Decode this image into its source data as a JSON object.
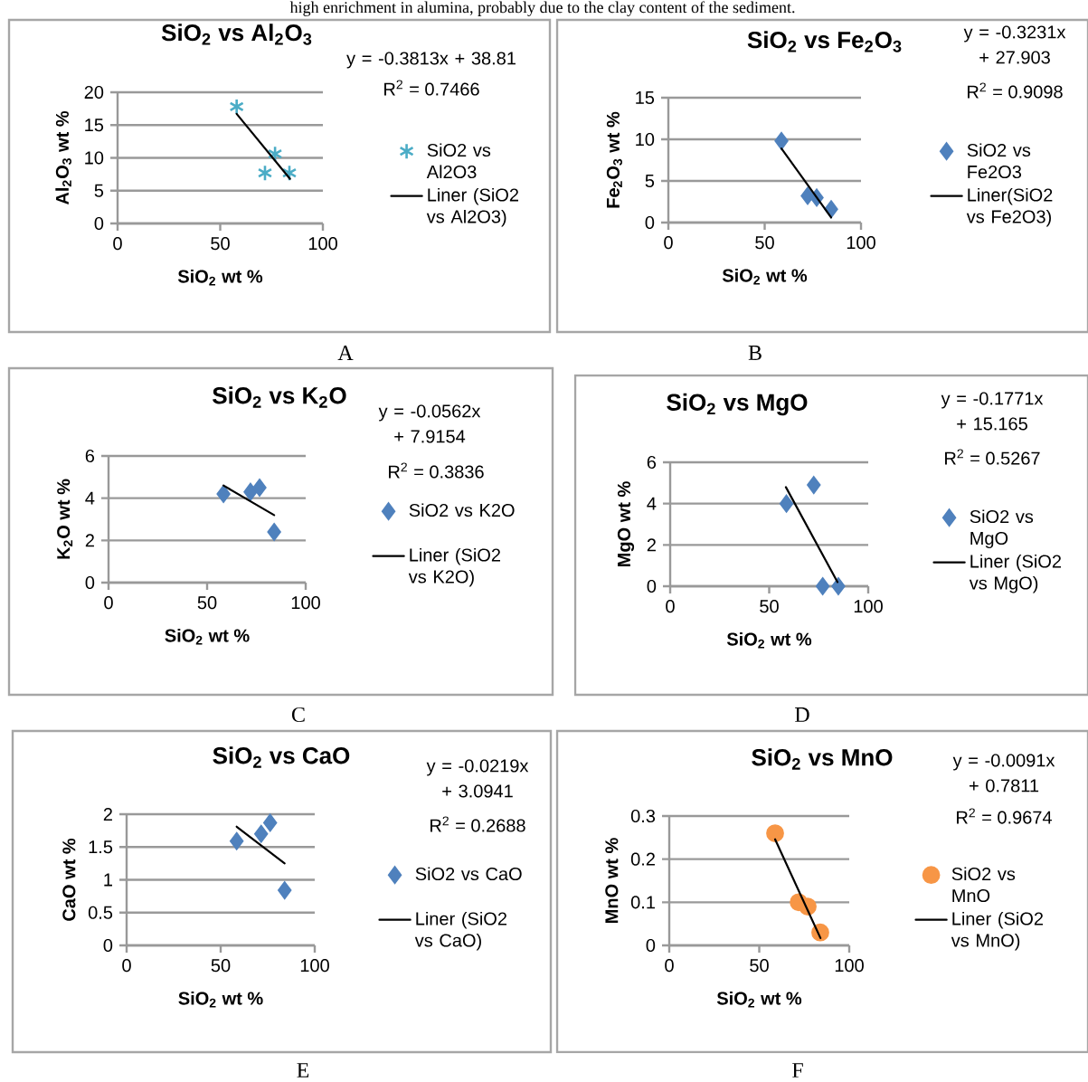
{
  "chart_data": [
    {
      "type": "scatter",
      "title": "SiO$_{2}$ vs Al$_{2}$O$_{3}$",
      "xlabel": "SiO$_{2}$ wt %",
      "ylabel": "Al$_{2}$O$_{3}$ wt %",
      "xlim": [
        0,
        100
      ],
      "xticks": [
        0,
        50,
        100
      ],
      "ylim": [
        0,
        20
      ],
      "yticks": [
        0,
        5,
        10,
        15,
        20
      ],
      "grid": "y",
      "legend": "right",
      "annotations": [
        "y = -0.3813x + 38.81",
        "R$^{2}$ = 0.7466",
        "A",
        "high enrichment in alumina, probably due to the clay content of the sediment."
      ],
      "series": [
        {
          "name": "SiO2 vs Al2O3",
          "color": "#4bacc6",
          "marker": "cross",
          "x": [
            58,
            71.8,
            76.7,
            83.7
          ],
          "values": [
            17.8,
            7.7,
            10.6,
            7.7
          ]
        },
        {
          "type": "line",
          "name": "Liner (SiO2 vs Al2O3)",
          "color": "#000000",
          "marker": "none",
          "x": [
            58,
            84
          ],
          "values": [
            16.7,
            6.8
          ]
        }
      ]
    },
    {
      "type": "scatter",
      "title": "SiO$_{2}$ vs Fe$_{2}$O$_{3}$",
      "xlabel": "SiO$_{2}$ wt %",
      "ylabel": "Fe$_{2}$O$_{3}$ wt %",
      "xlim": [
        0,
        100
      ],
      "xticks": [
        0,
        50,
        100
      ],
      "ylim": [
        0,
        15
      ],
      "yticks": [
        0,
        5,
        10,
        15
      ],
      "grid": "y",
      "legend": "right",
      "annotations": [
        "y = -0.3231x + 27.903",
        "R$^{2}$ = 0.9098",
        "B"
      ],
      "series": [
        {
          "name": "SiO2 vs Fe2O3",
          "color": "#4f81bd",
          "marker": "diamond",
          "x": [
            58.7,
            72.3,
            77,
            84.5
          ],
          "values": [
            9.8,
            3.2,
            3.0,
            1.6
          ]
        },
        {
          "type": "line",
          "name": "Liner(SiO2 vs Fe2O3)",
          "color": "#000000",
          "marker": "none",
          "x": [
            58.7,
            84.5
          ],
          "values": [
            8.9,
            0.6
          ]
        }
      ]
    },
    {
      "type": "scatter",
      "title": "SiO$_{2}$ vs K$_{2}$O",
      "xlabel": "SiO$_{2}$ wt %",
      "ylabel": "K$_{2}$O wt %",
      "xlim": [
        0,
        100
      ],
      "xticks": [
        0,
        50,
        100
      ],
      "ylim": [
        0,
        6
      ],
      "yticks": [
        0,
        2,
        4,
        6
      ],
      "grid": "y",
      "legend": "right",
      "annotations": [
        "y = -0.0562x + 7.9154",
        "R$^{2}$ = 0.3836",
        "C"
      ],
      "series": [
        {
          "name": "SiO2 vs K2O",
          "color": "#4f81bd",
          "marker": "diamond",
          "x": [
            58.3,
            72,
            76.6,
            84
          ],
          "values": [
            4.2,
            4.3,
            4.5,
            2.4
          ]
        },
        {
          "type": "line",
          "name": "Liner (SiO2 vs K2O)",
          "color": "#000000",
          "marker": "none",
          "x": [
            58.3,
            84
          ],
          "values": [
            4.6,
            3.2
          ]
        }
      ]
    },
    {
      "type": "scatter",
      "title": "SiO$_{2}$ vs MgO",
      "xlabel": "SiO$_{2}$ wt %",
      "ylabel": "MgO wt %",
      "xlim": [
        0,
        100
      ],
      "xticks": [
        0,
        50,
        100
      ],
      "ylim": [
        0,
        6
      ],
      "yticks": [
        0,
        2,
        4,
        6
      ],
      "grid": "y",
      "legend": "right",
      "annotations": [
        "y = -0.1771x + 15.165",
        "R$^{2}$ = 0.5267",
        "D"
      ],
      "series": [
        {
          "name": "SiO2 vs MgO",
          "color": "#4f81bd",
          "marker": "diamond",
          "x": [
            58.7,
            72.5,
            77,
            84.9
          ],
          "values": [
            4.0,
            4.9,
            0,
            0
          ]
        },
        {
          "type": "line",
          "name": "Liner (SiO2 vs MgO)",
          "color": "#000000",
          "marker": "none",
          "x": [
            58.4,
            84.5
          ],
          "values": [
            4.8,
            0.2
          ]
        }
      ]
    },
    {
      "type": "scatter",
      "title": "SiO$_{2}$ vs CaO",
      "xlabel": "SiO$_{2}$ wt %",
      "ylabel": "CaO wt %",
      "xlim": [
        0,
        100
      ],
      "xticks": [
        0,
        50,
        100
      ],
      "ylim": [
        0,
        2
      ],
      "yticks": [
        0,
        0.5,
        1,
        1.5,
        2
      ],
      "grid": "y",
      "legend": "right",
      "annotations": [
        "y = -0.0219x + 3.0941",
        "R$^{2}$ = 0.2688",
        "E"
      ],
      "series": [
        {
          "name": "SiO2 vs CaO",
          "color": "#4f81bd",
          "marker": "diamond",
          "x": [
            58.5,
            71.5,
            76.3,
            84
          ],
          "values": [
            1.59,
            1.7,
            1.87,
            0.84
          ]
        },
        {
          "type": "line",
          "name": "Liner (SiO2 vs CaO)",
          "color": "#000000",
          "marker": "none",
          "x": [
            58.5,
            84
          ],
          "values": [
            1.81,
            1.25
          ]
        }
      ]
    },
    {
      "type": "scatter",
      "title": "SiO$_{2}$ vs MnO",
      "xlabel": "SiO$_{2}$ wt %",
      "ylabel": "MnO wt %",
      "xlim": [
        0,
        100
      ],
      "xticks": [
        0,
        50,
        100
      ],
      "ylim": [
        0,
        0.3
      ],
      "yticks": [
        0,
        0.1,
        0.2,
        0.3
      ],
      "grid": "y",
      "legend": "right",
      "annotations": [
        "y = -0.0091x + 0.7811",
        "R$^{2}$ = 0.9674",
        "F"
      ],
      "series": [
        {
          "name": "SiO2 vs MnO",
          "color": "#f79646",
          "marker": "circle",
          "x": [
            58.8,
            71.9,
            76.9,
            83.9
          ],
          "values": [
            0.26,
            0.1,
            0.09,
            0.03
          ]
        },
        {
          "type": "line",
          "name": "Liner (SiO2 vs MnO)",
          "color": "#000000",
          "marker": "none",
          "x": [
            58.8,
            84
          ],
          "values": [
            0.246,
            0.017
          ]
        }
      ]
    }
  ]
}
